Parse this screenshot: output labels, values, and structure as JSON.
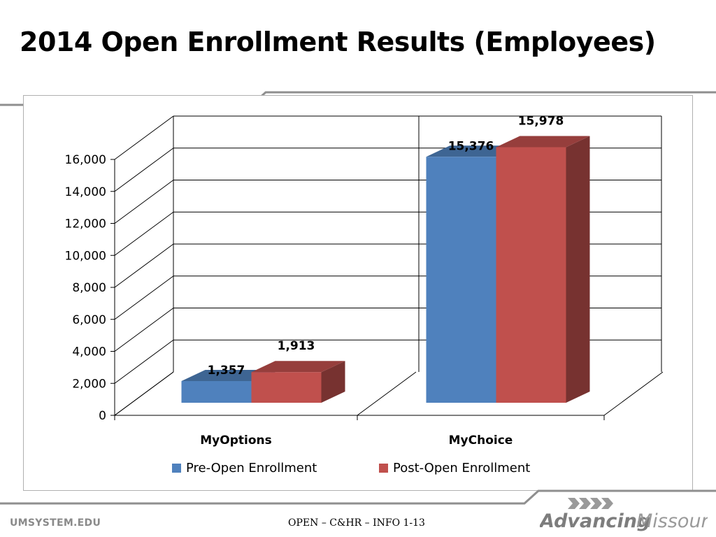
{
  "slide": {
    "title": "2014 Open Enrollment Results (Employees)"
  },
  "footer": {
    "site": "UMSYSTEM.EDU",
    "reference": "OPEN – C&HR – INFO 1-13",
    "logo_text_1": "Advancing",
    "logo_text_2": "Missouri",
    "logo_icon": "chevron-arrows-icon"
  },
  "chart_data": {
    "type": "bar",
    "style": "3d-clustered",
    "categories": [
      "MyOptions",
      "MyChoice"
    ],
    "series": [
      {
        "name": "Pre-Open Enrollment",
        "values": [
          1357,
          15376
        ],
        "labels": [
          "1,357",
          "15,376"
        ],
        "color": "#4F81BD"
      },
      {
        "name": "Post-Open Enrollment",
        "values": [
          1913,
          15978
        ],
        "labels": [
          "1,913",
          "15,978"
        ],
        "color": "#C0504D"
      }
    ],
    "y_ticks": [
      "0",
      "2,000",
      "4,000",
      "6,000",
      "8,000",
      "10,000",
      "12,000",
      "14,000",
      "16,000"
    ],
    "ylim": [
      0,
      16000
    ],
    "grid": true,
    "legend": "bottom"
  },
  "colors": {
    "pre": "#4F81BD",
    "post": "#C0504D",
    "footer_gray": "#8a8a8a"
  }
}
